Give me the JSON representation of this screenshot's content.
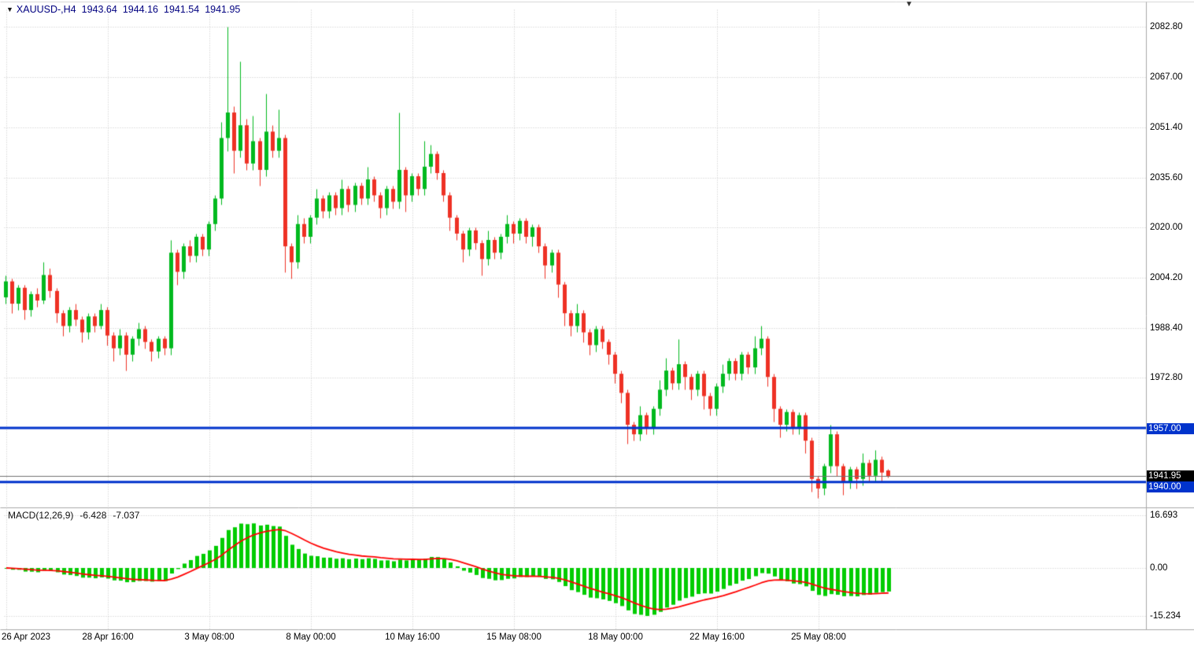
{
  "quote": {
    "symbol_timeframe": "XAUUSD-,H4",
    "open": "1943.64",
    "high": "1944.16",
    "low": "1941.54",
    "close": "1941.95"
  },
  "icons": {
    "quote_collapse": "▼",
    "chart_shift": "▼"
  },
  "price_axis": {
    "labels": [
      "2082.80",
      "2067.00",
      "2051.40",
      "2035.60",
      "2020.00",
      "2004.20",
      "1988.40",
      "1972.80"
    ],
    "resistance_badge": "1957.00",
    "bid_badge": "1941.95",
    "support_badge": "1940.00"
  },
  "macd_panel": {
    "title": "MACD(12,26,9)",
    "macd_value": "-6.428",
    "signal_value": "-7.037",
    "scale_labels": [
      "16.693",
      "0.00",
      "-15.234"
    ]
  },
  "time_axis": {
    "labels": [
      "26 Apr 2023",
      "28 Apr 16:00",
      "3 May 08:00",
      "8 May 00:00",
      "10 May 16:00",
      "15 May 08:00",
      "18 May 00:00",
      "22 May 16:00",
      "25 May 08:00"
    ]
  },
  "colors": {
    "bull": "#00b91e",
    "bear": "#ee3124",
    "level_blue": "#0033cc",
    "bid_line": "#707070",
    "grid": "#c6c6c6",
    "hist_green": "#00cc00",
    "signal_red": "#ff0000",
    "separator": "#a9a9a9",
    "quote_text": "#000080"
  },
  "chart_data": {
    "type": "candlestick",
    "symbol": "XAUUSD-",
    "timeframe": "H4",
    "price_gridlines": [
      2082.8,
      2067.0,
      2051.4,
      2035.6,
      2020.0,
      2004.2,
      1988.4,
      1972.8
    ],
    "levels": {
      "resistance": 1957.0,
      "bid": 1941.95,
      "support": 1940.0
    },
    "time_labels": [
      "26 Apr 2023",
      "28 Apr 16:00",
      "3 May 08:00",
      "8 May 00:00",
      "10 May 16:00",
      "15 May 08:00",
      "18 May 00:00",
      "22 May 16:00",
      "25 May 08:00"
    ],
    "time_label_bar_indexes": [
      0,
      16,
      32,
      48,
      64,
      80,
      96,
      112,
      128
    ],
    "macd": {
      "params": [
        12,
        26,
        9
      ],
      "macd_display": -6.428,
      "signal_display": -7.037,
      "scale": [
        16.693,
        0,
        -15.234
      ]
    },
    "candles": [
      [
        1998,
        2005,
        1996,
        2003
      ],
      [
        2003,
        2004,
        1993,
        1996
      ],
      [
        1996,
        2002,
        1994,
        2001
      ],
      [
        2001,
        2002,
        1991,
        1994
      ],
      [
        1994,
        2000,
        1992,
        1999
      ],
      [
        1999,
        2001,
        1995,
        1997
      ],
      [
        1997,
        2009,
        1996,
        2005
      ],
      [
        2005,
        2007,
        1998,
        2000
      ],
      [
        2000,
        2001,
        1990,
        1993
      ],
      [
        1993,
        1994,
        1986,
        1989
      ],
      [
        1989,
        1995,
        1987,
        1994
      ],
      [
        1994,
        1996,
        1989,
        1991
      ],
      [
        1991,
        1992,
        1984,
        1987
      ],
      [
        1987,
        1993,
        1985,
        1992
      ],
      [
        1992,
        1993,
        1987,
        1989
      ],
      [
        1989,
        1996,
        1988,
        1994
      ],
      [
        1994,
        1995,
        1983,
        1986
      ],
      [
        1986,
        1987,
        1978,
        1982
      ],
      [
        1982,
        1988,
        1980,
        1986
      ],
      [
        1986,
        1987,
        1975,
        1980
      ],
      [
        1980,
        1986,
        1978,
        1985
      ],
      [
        1985,
        1990,
        1983,
        1988
      ],
      [
        1988,
        1989,
        1982,
        1984
      ],
      [
        1984,
        1985,
        1978,
        1981
      ],
      [
        1981,
        1986,
        1979,
        1985
      ],
      [
        1985,
        1986,
        1980,
        1982
      ],
      [
        1982,
        2016,
        1980,
        2012
      ],
      [
        2012,
        2013,
        2002,
        2006
      ],
      [
        2006,
        2015,
        2004,
        2014
      ],
      [
        2014,
        2016,
        2009,
        2011
      ],
      [
        2011,
        2018,
        2009,
        2017
      ],
      [
        2017,
        2018,
        2011,
        2013
      ],
      [
        2013,
        2022,
        2011,
        2021
      ],
      [
        2021,
        2030,
        2019,
        2029
      ],
      [
        2029,
        2053,
        2027,
        2048
      ],
      [
        2048,
        2083,
        2044,
        2056
      ],
      [
        2056,
        2058,
        2037,
        2044
      ],
      [
        2044,
        2072,
        2042,
        2052
      ],
      [
        2052,
        2054,
        2038,
        2040
      ],
      [
        2040,
        2055,
        2038,
        2047
      ],
      [
        2047,
        2048,
        2033,
        2038
      ],
      [
        2038,
        2062,
        2036,
        2050
      ],
      [
        2050,
        2052,
        2042,
        2044
      ],
      [
        2044,
        2057,
        2042,
        2048
      ],
      [
        2048,
        2049,
        2006,
        2014
      ],
      [
        2014,
        2015,
        2004,
        2009
      ],
      [
        2009,
        2024,
        2007,
        2021
      ],
      [
        2021,
        2023,
        2015,
        2017
      ],
      [
        2017,
        2024,
        2015,
        2023
      ],
      [
        2023,
        2032,
        2021,
        2029
      ],
      [
        2029,
        2030,
        2023,
        2025
      ],
      [
        2025,
        2031,
        2023,
        2030
      ],
      [
        2030,
        2031,
        2024,
        2026
      ],
      [
        2026,
        2035,
        2024,
        2032
      ],
      [
        2032,
        2033,
        2025,
        2027
      ],
      [
        2027,
        2034,
        2025,
        2033
      ],
      [
        2033,
        2034,
        2027,
        2029
      ],
      [
        2029,
        2039,
        2027,
        2035
      ],
      [
        2035,
        2036,
        2028,
        2030
      ],
      [
        2030,
        2031,
        2023,
        2026
      ],
      [
        2026,
        2033,
        2024,
        2032
      ],
      [
        2032,
        2033,
        2026,
        2028
      ],
      [
        2028,
        2056,
        2026,
        2038
      ],
      [
        2038,
        2039,
        2025,
        2030
      ],
      [
        2030,
        2037,
        2028,
        2036
      ],
      [
        2036,
        2037,
        2030,
        2032
      ],
      [
        2032,
        2047,
        2030,
        2039
      ],
      [
        2039,
        2046,
        2037,
        2043
      ],
      [
        2043,
        2044,
        2035,
        2037
      ],
      [
        2037,
        2038,
        2028,
        2030
      ],
      [
        2030,
        2031,
        2019,
        2023
      ],
      [
        2023,
        2024,
        2016,
        2018
      ],
      [
        2018,
        2019,
        2009,
        2013
      ],
      [
        2013,
        2020,
        2011,
        2019
      ],
      [
        2019,
        2020,
        2013,
        2015
      ],
      [
        2015,
        2016,
        2005,
        2010
      ],
      [
        2010,
        2019,
        2008,
        2016
      ],
      [
        2016,
        2017,
        2010,
        2012
      ],
      [
        2012,
        2018,
        2010,
        2017
      ],
      [
        2017,
        2024,
        2015,
        2021
      ],
      [
        2021,
        2022,
        2015,
        2018
      ],
      [
        2018,
        2023,
        2016,
        2022
      ],
      [
        2022,
        2023,
        2015,
        2017
      ],
      [
        2017,
        2021,
        2014,
        2020
      ],
      [
        2020,
        2021,
        2012,
        2014
      ],
      [
        2014,
        2015,
        2004,
        2008
      ],
      [
        2008,
        2013,
        2006,
        2012
      ],
      [
        2012,
        2013,
        1998,
        2002
      ],
      [
        2002,
        2003,
        1989,
        1993
      ],
      [
        1993,
        1994,
        1986,
        1989
      ],
      [
        1989,
        1996,
        1987,
        1993
      ],
      [
        1993,
        1994,
        1984,
        1987
      ],
      [
        1987,
        1988,
        1980,
        1983
      ],
      [
        1983,
        1989,
        1981,
        1988
      ],
      [
        1988,
        1989,
        1982,
        1984
      ],
      [
        1984,
        1985,
        1977,
        1980
      ],
      [
        1980,
        1981,
        1971,
        1974
      ],
      [
        1974,
        1975,
        1965,
        1968
      ],
      [
        1968,
        1969,
        1952,
        1958
      ],
      [
        1958,
        1959,
        1953,
        1955
      ],
      [
        1955,
        1964,
        1953,
        1961
      ],
      [
        1961,
        1962,
        1955,
        1957
      ],
      [
        1957,
        1964,
        1955,
        1963
      ],
      [
        1963,
        1972,
        1961,
        1969
      ],
      [
        1969,
        1979,
        1967,
        1975
      ],
      [
        1975,
        1976,
        1969,
        1971
      ],
      [
        1971,
        1985,
        1969,
        1977
      ],
      [
        1977,
        1978,
        1969,
        1973
      ],
      [
        1973,
        1974,
        1966,
        1969
      ],
      [
        1969,
        1975,
        1967,
        1974
      ],
      [
        1974,
        1975,
        1963,
        1967
      ],
      [
        1967,
        1968,
        1961,
        1963
      ],
      [
        1963,
        1971,
        1961,
        1970
      ],
      [
        1970,
        1977,
        1968,
        1974
      ],
      [
        1974,
        1979,
        1972,
        1978
      ],
      [
        1978,
        1979,
        1972,
        1974
      ],
      [
        1974,
        1981,
        1972,
        1980
      ],
      [
        1980,
        1981,
        1974,
        1976
      ],
      [
        1976,
        1986,
        1974,
        1982
      ],
      [
        1982,
        1989,
        1980,
        1985
      ],
      [
        1985,
        1986,
        1970,
        1973
      ],
      [
        1973,
        1974,
        1959,
        1963
      ],
      [
        1963,
        1964,
        1954,
        1958
      ],
      [
        1958,
        1963,
        1956,
        1962
      ],
      [
        1962,
        1963,
        1955,
        1957
      ],
      [
        1957,
        1962,
        1955,
        1961
      ],
      [
        1961,
        1962,
        1949,
        1953
      ],
      [
        1953,
        1954,
        1937,
        1941
      ],
      [
        1941,
        1942,
        1935,
        1938
      ],
      [
        1938,
        1946,
        1936,
        1945
      ],
      [
        1945,
        1958,
        1943,
        1955
      ],
      [
        1955,
        1956,
        1942,
        1945
      ],
      [
        1945,
        1946,
        1936,
        1940
      ],
      [
        1940,
        1945,
        1938,
        1944
      ],
      [
        1944,
        1945,
        1938,
        1941
      ],
      [
        1941,
        1949,
        1939,
        1946
      ],
      [
        1946,
        1947,
        1940,
        1942
      ],
      [
        1942,
        1950,
        1940,
        1947
      ],
      [
        1947,
        1948,
        1940,
        1943
      ],
      [
        1943.64,
        1944.16,
        1941.54,
        1941.95
      ]
    ]
  }
}
